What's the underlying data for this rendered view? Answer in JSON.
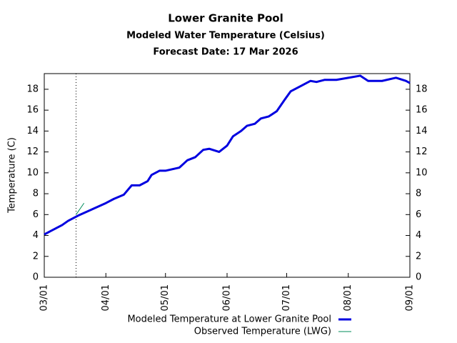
{
  "chart_data": {
    "type": "line",
    "title": "Lower Granite Pool",
    "subtitle": "Modeled Water Temperature (Celsius)",
    "subtitle2": "Forecast Date: 17 Mar 2026",
    "y_label": "Temperature (C)",
    "xlim": [
      "03/01",
      "09/01"
    ],
    "xticks": [
      "03/01",
      "04/01",
      "05/01",
      "06/01",
      "07/01",
      "08/01",
      "09/01"
    ],
    "ylim": [
      0,
      19.5
    ],
    "yticks": [
      0,
      2,
      4,
      6,
      8,
      10,
      12,
      14,
      16,
      18
    ],
    "forecast_line": "03/17",
    "legend": "bottom",
    "series": [
      {
        "name": "Modeled Temperature at Lower Granite Pool",
        "color": "#0000e0",
        "x": [
          "03/01",
          "03/05",
          "03/10",
          "03/13",
          "03/18",
          "03/25",
          "04/01",
          "04/05",
          "04/10",
          "04/14",
          "04/18",
          "04/22",
          "04/24",
          "04/28",
          "05/01",
          "05/08",
          "05/12",
          "05/16",
          "05/20",
          "05/23",
          "05/28",
          "06/01",
          "06/04",
          "06/08",
          "06/11",
          "06/15",
          "06/18",
          "06/22",
          "06/26",
          "06/30",
          "07/03",
          "07/08",
          "07/13",
          "07/16",
          "07/20",
          "07/26",
          "08/01",
          "08/07",
          "08/11",
          "08/18",
          "08/25",
          "08/30",
          "09/01"
        ],
        "values": [
          4.1,
          4.5,
          5.0,
          5.4,
          5.9,
          6.5,
          7.1,
          7.5,
          7.9,
          8.8,
          8.8,
          9.2,
          9.8,
          10.2,
          10.2,
          10.5,
          11.2,
          11.5,
          12.2,
          12.3,
          12.0,
          12.6,
          13.5,
          14.0,
          14.5,
          14.7,
          15.2,
          15.4,
          15.9,
          17.0,
          17.8,
          18.3,
          18.8,
          18.7,
          18.9,
          18.9,
          19.1,
          19.3,
          18.8,
          18.8,
          19.1,
          18.8,
          18.6
        ]
      },
      {
        "name": "Observed Temperature (LWG)",
        "color": "#008c5a",
        "x": [
          "03/17",
          "03/21"
        ],
        "values": [
          6.0,
          7.1
        ]
      }
    ]
  }
}
